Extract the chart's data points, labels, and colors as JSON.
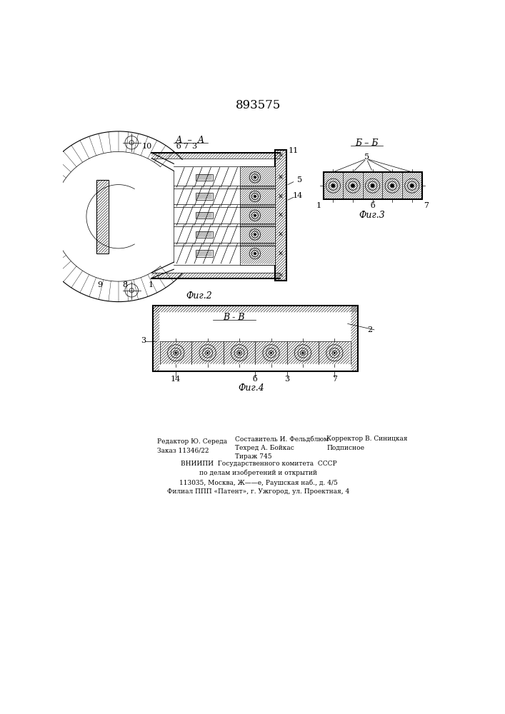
{
  "title": "893575",
  "bg_color": "#ffffff",
  "line_color": "#000000",
  "fig2_label": "Фиг.2",
  "fig3_label": "Фиг.3",
  "fig4_label": "Фиг.4",
  "section_aa": "А  –  А",
  "section_bb": "Б – Б",
  "section_vv": "В - В",
  "footer_text": "ВНИИПИ  Государственного комитета  СССР\nпо делам изобретений и открытий\n113035, Москва, Ж——е, Раушская наб., д. 4/5\nФилиал ППП «Патент», г. Ужгород, ул. Проектная, 4",
  "left_col_text": "Редактор Ю. Середа\nЗаказ 11346/22",
  "mid_col_text": "Составитель И. Фельдблюм\nТехред А. Бойкас\nТираж 745",
  "right_col_text": "Корректор В. Синицкая\nПодписное"
}
